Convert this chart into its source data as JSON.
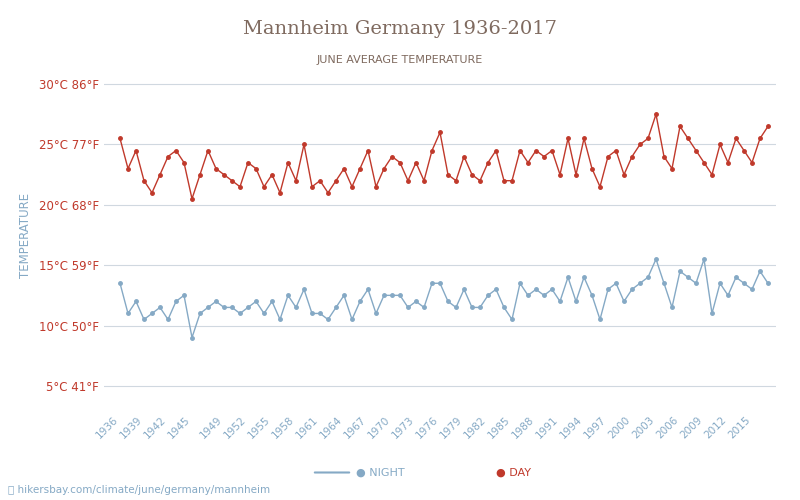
{
  "title": "Mannheim Germany 1936-2017",
  "subtitle": "JUNE AVERAGE TEMPERATURE",
  "ylabel": "TEMPERATURE",
  "xlabel_years": [
    1936,
    1939,
    1942,
    1945,
    1949,
    1952,
    1955,
    1958,
    1961,
    1964,
    1967,
    1970,
    1973,
    1976,
    1979,
    1982,
    1985,
    1988,
    1991,
    1994,
    1997,
    2000,
    2003,
    2006,
    2009,
    2012,
    2015
  ],
  "years": [
    1936,
    1937,
    1938,
    1939,
    1940,
    1941,
    1942,
    1943,
    1944,
    1945,
    1946,
    1947,
    1948,
    1949,
    1950,
    1951,
    1952,
    1953,
    1954,
    1955,
    1956,
    1957,
    1958,
    1959,
    1960,
    1961,
    1962,
    1963,
    1964,
    1965,
    1966,
    1967,
    1968,
    1969,
    1970,
    1971,
    1972,
    1973,
    1974,
    1975,
    1976,
    1977,
    1978,
    1979,
    1980,
    1981,
    1982,
    1983,
    1984,
    1985,
    1986,
    1987,
    1988,
    1989,
    1990,
    1991,
    1992,
    1993,
    1994,
    1995,
    1996,
    1997,
    1998,
    1999,
    2000,
    2001,
    2002,
    2003,
    2004,
    2005,
    2006,
    2007,
    2008,
    2009,
    2010,
    2011,
    2012,
    2013,
    2014,
    2015,
    2016,
    2017
  ],
  "day_temps": [
    25.5,
    23.0,
    24.5,
    22.0,
    21.0,
    22.5,
    24.0,
    24.5,
    23.5,
    20.5,
    22.5,
    24.5,
    23.0,
    22.5,
    22.0,
    21.5,
    23.5,
    23.0,
    21.5,
    22.5,
    21.0,
    23.5,
    22.0,
    25.0,
    21.5,
    22.0,
    21.0,
    22.0,
    23.0,
    21.5,
    23.0,
    24.5,
    21.5,
    23.0,
    24.0,
    23.5,
    22.0,
    23.5,
    22.0,
    24.5,
    26.0,
    22.5,
    22.0,
    24.0,
    22.5,
    22.0,
    23.5,
    24.5,
    22.0,
    22.0,
    24.5,
    23.5,
    24.5,
    24.0,
    24.5,
    22.5,
    25.5,
    22.5,
    25.5,
    23.0,
    21.5,
    24.0,
    24.5,
    22.5,
    24.0,
    25.0,
    25.5,
    27.5,
    24.0,
    23.0,
    26.5,
    25.5,
    24.5,
    23.5,
    22.5,
    25.0,
    23.5,
    25.5,
    24.5,
    23.5,
    25.5,
    26.5
  ],
  "night_temps": [
    13.5,
    11.0,
    12.0,
    10.5,
    11.0,
    11.5,
    10.5,
    12.0,
    12.5,
    9.0,
    11.0,
    11.5,
    12.0,
    11.5,
    11.5,
    11.0,
    11.5,
    12.0,
    11.0,
    12.0,
    10.5,
    12.5,
    11.5,
    13.0,
    11.0,
    11.0,
    10.5,
    11.5,
    12.5,
    10.5,
    12.0,
    13.0,
    11.0,
    12.5,
    12.5,
    12.5,
    11.5,
    12.0,
    11.5,
    13.5,
    13.5,
    12.0,
    11.5,
    13.0,
    11.5,
    11.5,
    12.5,
    13.0,
    11.5,
    10.5,
    13.5,
    12.5,
    13.0,
    12.5,
    13.0,
    12.0,
    14.0,
    12.0,
    14.0,
    12.5,
    10.5,
    13.0,
    13.5,
    12.0,
    13.0,
    13.5,
    14.0,
    15.5,
    13.5,
    11.5,
    14.5,
    14.0,
    13.5,
    15.5,
    11.0,
    13.5,
    12.5,
    14.0,
    13.5,
    13.0,
    14.5,
    13.5
  ],
  "day_color": "#c0392b",
  "night_color": "#85a9c5",
  "title_color": "#7f6a5f",
  "subtitle_color": "#7f6a5f",
  "ylabel_color": "#85a9c5",
  "tick_color": "#c0392b",
  "grid_color": "#d0d8e0",
  "background_color": "#ffffff",
  "ylim": [
    3,
    32
  ],
  "yticks_c": [
    5,
    10,
    15,
    20,
    25,
    30
  ],
  "yticks_f": [
    41,
    50,
    59,
    68,
    77,
    86
  ],
  "footer": "hikersbay.com/climate/june/germany/mannheim"
}
